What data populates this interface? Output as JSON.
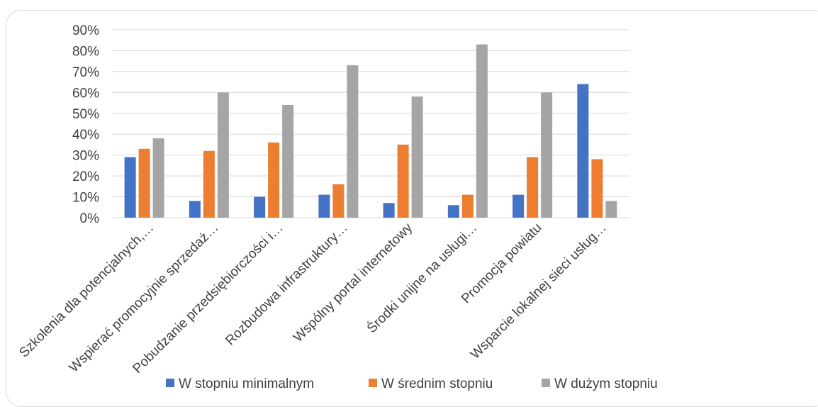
{
  "chart_data": {
    "type": "bar",
    "title": "",
    "xlabel": "",
    "ylabel": "",
    "ylim": [
      0,
      90
    ],
    "yticks": [
      "0%",
      "10%",
      "20%",
      "30%",
      "40%",
      "50%",
      "60%",
      "70%",
      "80%",
      "90%"
    ],
    "grid": true,
    "legend_position": "bottom",
    "categories": [
      "Szkolenia dla potencjalnych,…",
      "Wspierać promocyjnie sprzedaż…",
      "Pobudzanie przedsiębiorczości i…",
      "Rozbudowa infrastruktury…",
      "Wspólny portal internetowy",
      "Środki unijne na usługi…",
      "Promocja powiatu",
      "Wsparcie lokalnej sieci usług…"
    ],
    "series": [
      {
        "name": "W stopniu minimalnym",
        "color": "#4472C4",
        "values": [
          29,
          8,
          10,
          11,
          7,
          6,
          11,
          64
        ]
      },
      {
        "name": "W średnim stopniu",
        "color": "#ED7D31",
        "values": [
          33,
          32,
          36,
          16,
          35,
          11,
          29,
          28
        ]
      },
      {
        "name": "W dużym stopniu",
        "color": "#A5A5A5",
        "values": [
          38,
          60,
          54,
          73,
          58,
          83,
          60,
          8
        ]
      }
    ]
  }
}
